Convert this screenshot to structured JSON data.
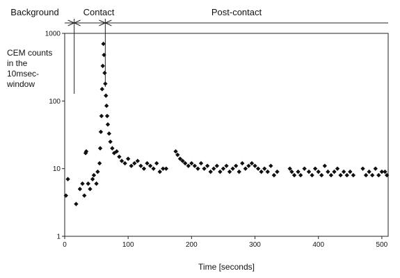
{
  "chart_data": {
    "type": "scatter",
    "title": "",
    "xlabel": "Time [seconds]",
    "ylabel": "CEM counts in the 10msec-window",
    "ylabel_lines": [
      "CEM counts",
      "in the",
      "10msec-",
      "window"
    ],
    "xlim": [
      0,
      510
    ],
    "ylim": [
      1,
      1000
    ],
    "y_scale": "log",
    "x_ticks": [
      "0",
      "100",
      "200",
      "300",
      "400",
      "500"
    ],
    "x_tick_values": [
      0,
      100,
      200,
      300,
      400,
      500
    ],
    "y_ticks": [
      "1",
      "10",
      "100",
      "1000"
    ],
    "y_tick_values": [
      1,
      10,
      100,
      1000
    ],
    "grid": false,
    "marker_color": "#111111",
    "phases": [
      {
        "label": "Background",
        "x_start": 0,
        "x_end": 15
      },
      {
        "label": "Contact",
        "x_start": 15,
        "x_end": 64
      },
      {
        "label": "Post-contact",
        "x_start": 64,
        "x_end": 510
      }
    ],
    "series": [
      {
        "points": [
          [
            2,
            4
          ],
          [
            5,
            7
          ],
          [
            18,
            3
          ],
          [
            24,
            5
          ],
          [
            28,
            6
          ],
          [
            31,
            4
          ],
          [
            33,
            17
          ],
          [
            34,
            18
          ],
          [
            37,
            6
          ],
          [
            40,
            5
          ],
          [
            44,
            7
          ],
          [
            46,
            8
          ],
          [
            50,
            6
          ],
          [
            52,
            9
          ],
          [
            55,
            12
          ],
          [
            56,
            20
          ],
          [
            57,
            35
          ],
          [
            58,
            60
          ],
          [
            59,
            150
          ],
          [
            60,
            330
          ],
          [
            61,
            700
          ],
          [
            62,
            480
          ],
          [
            63,
            260
          ],
          [
            64,
            180
          ],
          [
            65,
            120
          ],
          [
            66,
            85
          ],
          [
            67,
            60
          ],
          [
            68,
            45
          ],
          [
            70,
            33
          ],
          [
            72,
            25
          ],
          [
            75,
            20
          ],
          [
            78,
            17
          ],
          [
            82,
            18
          ],
          [
            86,
            15
          ],
          [
            90,
            13
          ],
          [
            95,
            12
          ],
          [
            100,
            14
          ],
          [
            105,
            11
          ],
          [
            110,
            12
          ],
          [
            115,
            13
          ],
          [
            120,
            11
          ],
          [
            125,
            10
          ],
          [
            130,
            12
          ],
          [
            135,
            11
          ],
          [
            140,
            10
          ],
          [
            145,
            12
          ],
          [
            150,
            9
          ],
          [
            155,
            10
          ],
          [
            160,
            10
          ],
          [
            175,
            18
          ],
          [
            178,
            16
          ],
          [
            182,
            14
          ],
          [
            186,
            13
          ],
          [
            190,
            12
          ],
          [
            195,
            11
          ],
          [
            200,
            12
          ],
          [
            205,
            11
          ],
          [
            210,
            10
          ],
          [
            215,
            12
          ],
          [
            220,
            10
          ],
          [
            225,
            11
          ],
          [
            230,
            9
          ],
          [
            235,
            10
          ],
          [
            240,
            11
          ],
          [
            245,
            9
          ],
          [
            250,
            10
          ],
          [
            255,
            11
          ],
          [
            260,
            9
          ],
          [
            265,
            10
          ],
          [
            270,
            11
          ],
          [
            275,
            9
          ],
          [
            280,
            12
          ],
          [
            285,
            10
          ],
          [
            290,
            11
          ],
          [
            295,
            12
          ],
          [
            300,
            11
          ],
          [
            305,
            10
          ],
          [
            310,
            9
          ],
          [
            315,
            10
          ],
          [
            320,
            9
          ],
          [
            325,
            11
          ],
          [
            330,
            8
          ],
          [
            335,
            9
          ],
          [
            355,
            10
          ],
          [
            358,
            9
          ],
          [
            362,
            8
          ],
          [
            368,
            9
          ],
          [
            372,
            8
          ],
          [
            378,
            10
          ],
          [
            385,
            9
          ],
          [
            390,
            8
          ],
          [
            395,
            10
          ],
          [
            400,
            9
          ],
          [
            405,
            8
          ],
          [
            410,
            11
          ],
          [
            415,
            9
          ],
          [
            420,
            8
          ],
          [
            425,
            9
          ],
          [
            430,
            10
          ],
          [
            435,
            8
          ],
          [
            440,
            9
          ],
          [
            445,
            8
          ],
          [
            450,
            9
          ],
          [
            455,
            8
          ],
          [
            470,
            10
          ],
          [
            475,
            8
          ],
          [
            480,
            9
          ],
          [
            485,
            8
          ],
          [
            490,
            10
          ],
          [
            495,
            8
          ],
          [
            500,
            9
          ],
          [
            505,
            9
          ],
          [
            508,
            8
          ]
        ]
      }
    ]
  }
}
